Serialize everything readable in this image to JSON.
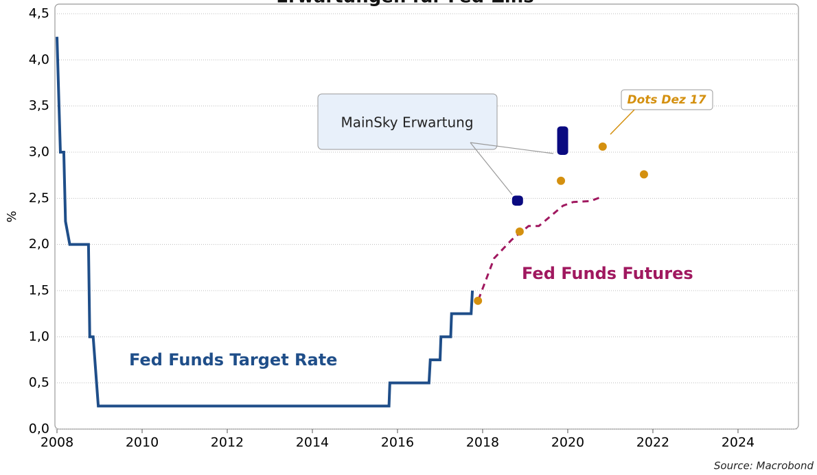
{
  "chart_data": {
    "type": "line",
    "title": "Erwartungen für Fed-Zins",
    "y_label": "%",
    "source": "Source: Macrobond",
    "xlim": [
      2008,
      2025.42
    ],
    "xticks": [
      2008,
      2010,
      2012,
      2014,
      2016,
      2018,
      2020,
      2022,
      2024
    ],
    "ylim": [
      0,
      4.5
    ],
    "yticks": [
      {
        "value": 0,
        "label": "0,0"
      },
      {
        "value": 0.5,
        "label": "0,5"
      },
      {
        "value": 1,
        "label": "1,0"
      },
      {
        "value": 1.5,
        "label": "1,5"
      },
      {
        "value": 2,
        "label": "2,0"
      },
      {
        "value": 2.5,
        "label": "2,5"
      },
      {
        "value": 3,
        "label": "3,0"
      },
      {
        "value": 3.5,
        "label": "3,5"
      },
      {
        "value": 4,
        "label": "4,0"
      },
      {
        "value": 4.5,
        "label": "4,5"
      }
    ],
    "grid": true,
    "series": [
      {
        "name": "Fed Funds Target Rate",
        "color": "#1f4e89",
        "style": "solid",
        "x": [
          2008.0,
          2008.08,
          2008.16,
          2008.2,
          2008.3,
          2008.74,
          2008.77,
          2008.85,
          2008.97,
          2015.8,
          2015.82,
          2016.74,
          2016.77,
          2017.0,
          2017.02,
          2017.25,
          2017.27,
          2017.73,
          2017.76
        ],
        "values": [
          4.25,
          3.0,
          3.0,
          2.25,
          2.0,
          2.0,
          1.0,
          1.0,
          0.25,
          0.25,
          0.5,
          0.5,
          0.75,
          0.75,
          1.0,
          1.0,
          1.25,
          1.25,
          1.5
        ]
      },
      {
        "name": "Fed Funds Futures",
        "color": "#a0185f",
        "style": "dashed",
        "x": [
          2017.9,
          2018.27,
          2018.68,
          2019.08,
          2019.32,
          2019.89,
          2020.13,
          2020.53,
          2020.82
        ],
        "values": [
          1.4,
          1.85,
          2.05,
          2.2,
          2.2,
          2.42,
          2.46,
          2.47,
          2.52
        ]
      }
    ],
    "dots": {
      "name": "Dots Dez 17",
      "color": "#d4900f",
      "x": [
        2017.89,
        2018.87,
        2019.84,
        2020.82,
        2021.79
      ],
      "values": [
        1.39,
        2.14,
        2.69,
        3.06,
        2.76
      ]
    },
    "expectation": {
      "name": "MainSky Erwartung",
      "color": "#0a0a80",
      "x": [
        2018.82,
        2019.88
      ],
      "low": [
        2.45,
        3.0
      ],
      "high": [
        2.5,
        3.25
      ]
    }
  }
}
